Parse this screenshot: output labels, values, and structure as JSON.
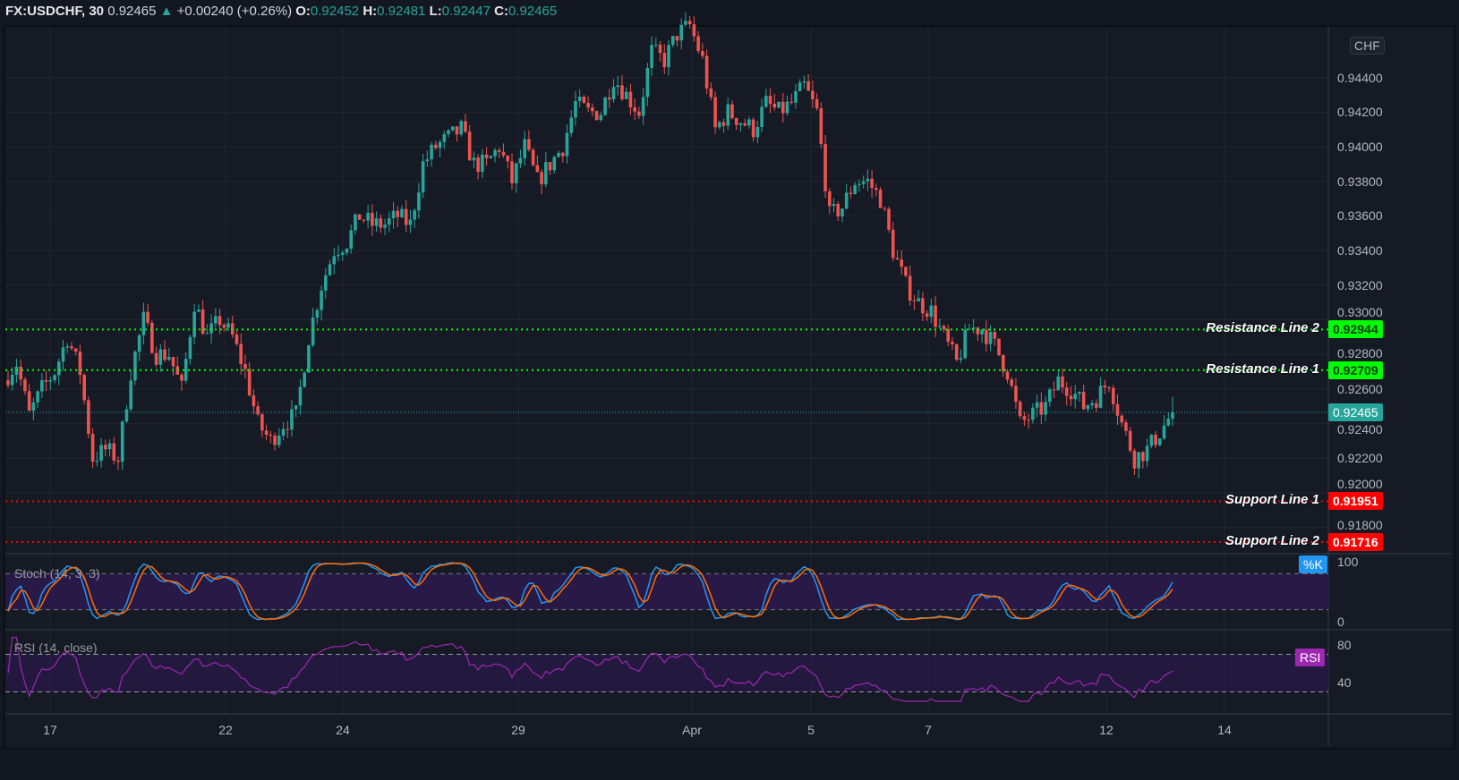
{
  "header": {
    "symbol": "FX:USDCHF, 30",
    "last": "0.92465",
    "change": "+0.00240 (+0.26%)",
    "o_label": "O:",
    "o": "0.92452",
    "h_label": "H:",
    "h": "0.92481",
    "l_label": "L:",
    "l": "0.92447",
    "c_label": "C:",
    "c": "0.92465"
  },
  "currency_button": "CHF",
  "colors": {
    "up": "#26a69a",
    "down": "#ef5350",
    "resistance": "#00ff00",
    "support": "#ff0000",
    "stoch_k": "#2196f3",
    "stoch_d": "#ff6d00",
    "rsi": "#9c27b0",
    "band": "#2a1a4a"
  },
  "price_axis": {
    "ticks": [
      "0.94400",
      "0.94200",
      "0.94000",
      "0.93800",
      "0.93600",
      "0.93400",
      "0.93200",
      "0.93000",
      "0.92800",
      "0.92600",
      "0.92400",
      "0.92200",
      "0.92000",
      "0.91800"
    ]
  },
  "levels": [
    {
      "name": "Resistance Line 2",
      "value": "0.92944",
      "kind": "resistance"
    },
    {
      "name": "Resistance Line 1",
      "value": "0.92709",
      "kind": "resistance"
    },
    {
      "name": "Support Line 1",
      "value": "0.91951",
      "kind": "support"
    },
    {
      "name": "Support Line 2",
      "value": "0.91716",
      "kind": "support"
    }
  ],
  "last_price_tag": "0.92465",
  "stoch": {
    "title": "Stoch (14, 3, 3)",
    "tag": "%K",
    "ticks": [
      "100",
      "0"
    ]
  },
  "rsi": {
    "title": "RSI (14, close)",
    "tag": "RSI",
    "ticks": [
      "80",
      "40"
    ]
  },
  "time_axis": {
    "ticks": [
      "17",
      "22",
      "24",
      "29",
      "Apr",
      "5",
      "7",
      "12",
      "14"
    ]
  },
  "chart_data": {
    "type": "candlestick",
    "symbol": "FX:USDCHF",
    "interval": "30",
    "ylim": [
      0.9165,
      0.9485
    ],
    "close": [
      0.9265,
      0.9275,
      0.9245,
      0.926,
      0.927,
      0.929,
      0.927,
      0.922,
      0.9225,
      0.922,
      0.927,
      0.93,
      0.928,
      0.928,
      0.926,
      0.931,
      0.929,
      0.93,
      0.929,
      0.927,
      0.924,
      0.923,
      0.924,
      0.9245,
      0.929,
      0.932,
      0.934,
      0.9345,
      0.936,
      0.9355,
      0.9355,
      0.936,
      0.9355,
      0.939,
      0.94,
      0.9405,
      0.941,
      0.939,
      0.939,
      0.94,
      0.938,
      0.94,
      0.938,
      0.939,
      0.94,
      0.9425,
      0.942,
      0.942,
      0.944,
      0.943,
      0.942,
      0.9455,
      0.945,
      0.9465,
      0.947,
      0.945,
      0.941,
      0.942,
      0.9415,
      0.941,
      0.9425,
      0.942,
      0.9425,
      0.9435,
      0.942,
      0.936,
      0.9365,
      0.938,
      0.938,
      0.937,
      0.934,
      0.932,
      0.931,
      0.9305,
      0.929,
      0.9275,
      0.9295,
      0.9295,
      0.9285,
      0.927,
      0.924,
      0.9245,
      0.925,
      0.9265,
      0.926,
      0.925,
      0.9255,
      0.9265,
      0.924,
      0.922,
      0.9225,
      0.9235,
      0.92465
    ]
  }
}
